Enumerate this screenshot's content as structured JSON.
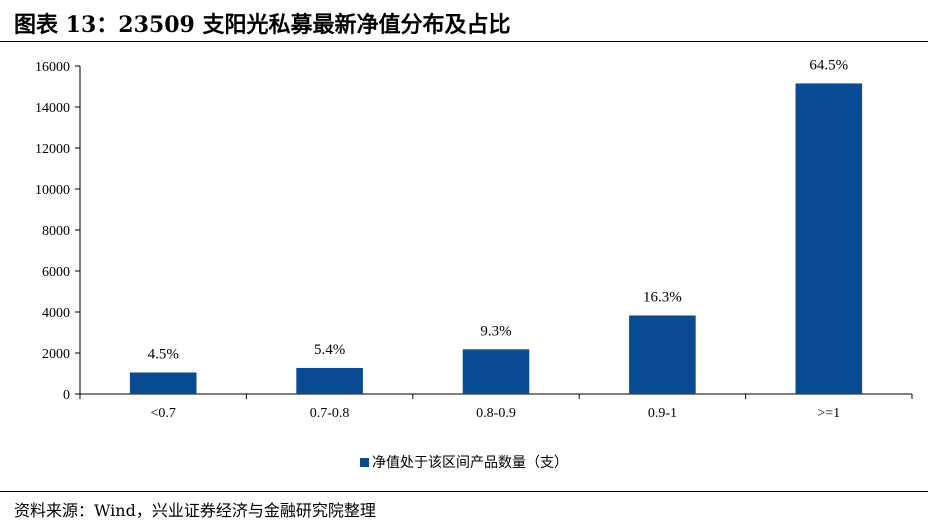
{
  "figure": {
    "title": "图表 13：23509 支阳光私募最新净值分布及占比",
    "source": "资料来源：Wind，兴业证券经济与金融研究院整理"
  },
  "colors": {
    "bar": "#0a4b94",
    "axis": "#000000"
  },
  "chart_data": {
    "type": "bar",
    "title": "",
    "xlabel": "",
    "ylabel": "",
    "categories": [
      "<0.7",
      "0.7-0.8",
      "0.8-0.9",
      "0.9-1",
      ">=1"
    ],
    "series": [
      {
        "name": "净值处于该区间产品数量（支）",
        "values": [
          1050,
          1270,
          2180,
          3830,
          15150
        ],
        "labels": [
          "4.5%",
          "5.4%",
          "9.3%",
          "16.3%",
          "64.5%"
        ]
      }
    ],
    "ylim": [
      0,
      16000
    ],
    "yticks": [
      0,
      2000,
      4000,
      6000,
      8000,
      10000,
      12000,
      14000,
      16000
    ],
    "grid": false,
    "legend": "bottom-center"
  }
}
